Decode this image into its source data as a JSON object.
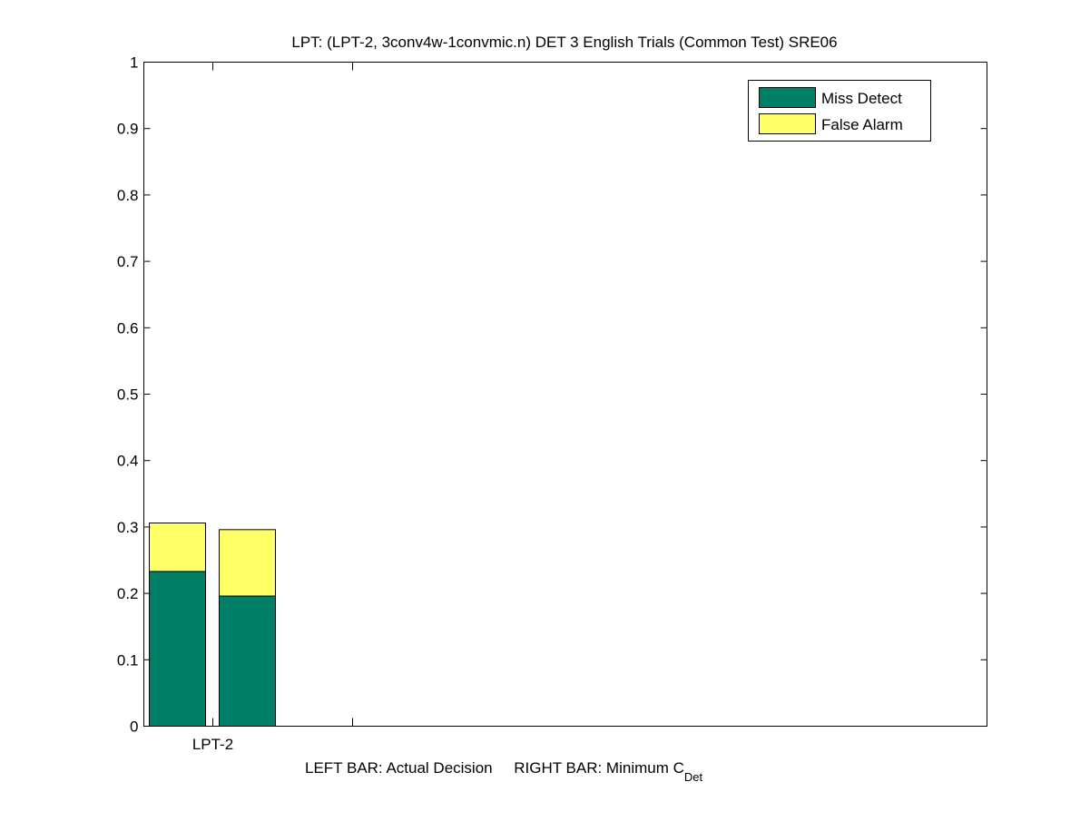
{
  "chart_data": {
    "type": "bar",
    "stacked": true,
    "title": "LPT: (LPT-2, 3conv4w-1convmic.n) DET 3 English Trials (Common Test) SRE06",
    "xlabel": "LEFT BAR: Actual Decision     RIGHT BAR: Minimum C",
    "xlabel_subscript": "Det",
    "ylabel": "",
    "ylim": [
      0,
      1
    ],
    "yticks": [
      "0",
      "0.1",
      "0.2",
      "0.3",
      "0.4",
      "0.5",
      "0.6",
      "0.7",
      "0.8",
      "0.9",
      "1"
    ],
    "xtick_labels": [
      "LPT-2",
      ""
    ],
    "categories": [
      "LPT-2"
    ],
    "bars": [
      {
        "category": "LPT-2",
        "kind": "Actual Decision",
        "miss_detect": 0.233,
        "false_alarm": 0.073
      },
      {
        "category": "LPT-2",
        "kind": "Minimum C_Det",
        "miss_detect": 0.196,
        "false_alarm": 0.1
      }
    ],
    "series": [
      {
        "name": "Miss Detect",
        "color": "#007f66"
      },
      {
        "name": "False Alarm",
        "color": "#ffff66"
      }
    ],
    "legend": "top-right",
    "grid": false
  }
}
